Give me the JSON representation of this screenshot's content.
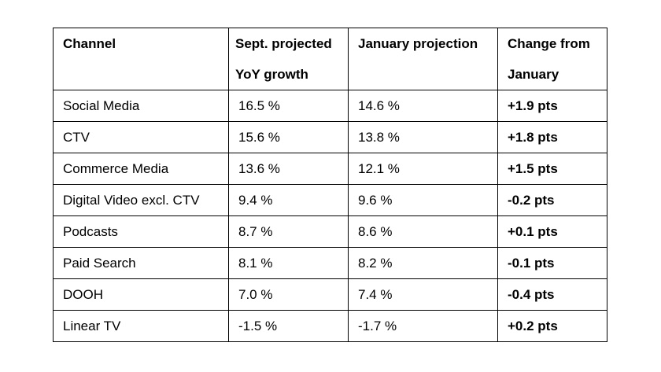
{
  "table": {
    "headers": [
      {
        "line1": "Channel",
        "line2": ""
      },
      {
        "line1": "Sept. projected",
        "line2": "YoY growth"
      },
      {
        "line1": "January projection",
        "line2": ""
      },
      {
        "line1": "Change from",
        "line2": "January"
      }
    ],
    "rows": [
      {
        "channel": "Social Media",
        "sept": "16.5 %",
        "january": "14.6 %",
        "change": "+1.9 pts"
      },
      {
        "channel": "CTV",
        "sept": "15.6 %",
        "january": "13.8 %",
        "change": "+1.8 pts"
      },
      {
        "channel": "Commerce Media",
        "sept": "13.6 %",
        "january": "12.1 %",
        "change": "+1.5 pts"
      },
      {
        "channel": "Digital Video excl. CTV",
        "sept": "9.4 %",
        "january": "9.6 %",
        "change": "-0.2 pts"
      },
      {
        "channel": "Podcasts",
        "sept": "8.7 %",
        "january": "8.6 %",
        "change": "+0.1 pts"
      },
      {
        "channel": "Paid Search",
        "sept": "8.1 %",
        "january": "8.2 %",
        "change": "-0.1 pts"
      },
      {
        "channel": "DOOH",
        "sept": "7.0 %",
        "january": "7.4 %",
        "change": "-0.4 pts"
      },
      {
        "channel": "Linear TV",
        "sept": "-1.5 %",
        "january": "-1.7 %",
        "change": "+0.2 pts"
      }
    ]
  }
}
